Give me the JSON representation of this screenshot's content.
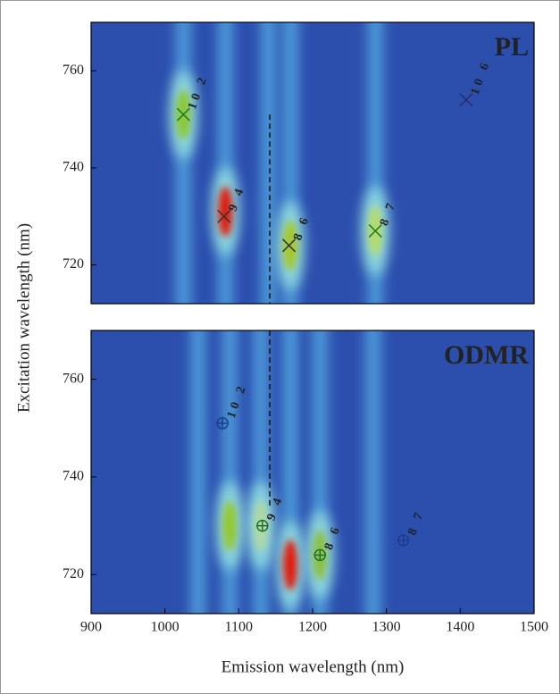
{
  "chart_data": [
    {
      "type": "heatmap",
      "label": "PL",
      "y_label": "Excitation wavelength (nm)",
      "xlim": [
        900,
        1500
      ],
      "ylim": [
        712,
        770
      ],
      "yticks": [
        720,
        740,
        760
      ],
      "stripes": {
        "x": [
          1025,
          1082,
          1140,
          1170,
          1285
        ]
      },
      "peaks": {
        "x": [
          1025,
          1082,
          1170,
          1285
        ],
        "y": [
          751,
          731,
          724,
          727
        ],
        "colors": [
          "#8cc830",
          "#e01a10",
          "#a6c828",
          "#b6dc6a"
        ]
      },
      "marker": "x",
      "points": {
        "x": [
          1025,
          1080,
          1168,
          1285,
          1408
        ],
        "y": [
          751,
          730,
          724,
          727,
          754
        ],
        "labels": [
          "10 2",
          "9 4",
          "8 6",
          "8 7",
          "10 6"
        ],
        "colors": [
          "#1a7a2a",
          "#333333",
          "#333333",
          "#1a7a2a",
          "#2a2a6a"
        ]
      },
      "guide": {
        "x": 1142,
        "y": [
          751,
          712
        ]
      }
    },
    {
      "type": "heatmap",
      "label": "ODMR",
      "x_label": "Emission wavelength (nm)",
      "xlim": [
        900,
        1500
      ],
      "ylim": [
        712,
        770
      ],
      "yticks": [
        720,
        740,
        760
      ],
      "xticks": [
        900,
        1000,
        1100,
        1200,
        1300,
        1400,
        1500
      ],
      "stripes": {
        "x": [
          1045,
          1088,
          1130,
          1170,
          1210,
          1282
        ]
      },
      "peaks": {
        "x": [
          1088,
          1170,
          1210,
          1130
        ],
        "y": [
          730,
          722,
          724,
          730
        ],
        "colors": [
          "#94c830",
          "#e01a10",
          "#8cc040",
          "#b0d8a0"
        ]
      },
      "marker": "circle-plus",
      "points": {
        "x": [
          1078,
          1132,
          1210,
          1323
        ],
        "y": [
          751,
          730,
          724,
          727
        ],
        "labels": [
          "10 2",
          "9 4",
          "8 6",
          "8 7"
        ],
        "colors": [
          "#1a3a8a",
          "#1a6a2a",
          "#1a6a2a",
          "#1a3a8a"
        ]
      },
      "guide": {
        "x": 1142,
        "y": [
          770,
          734
        ]
      }
    }
  ]
}
